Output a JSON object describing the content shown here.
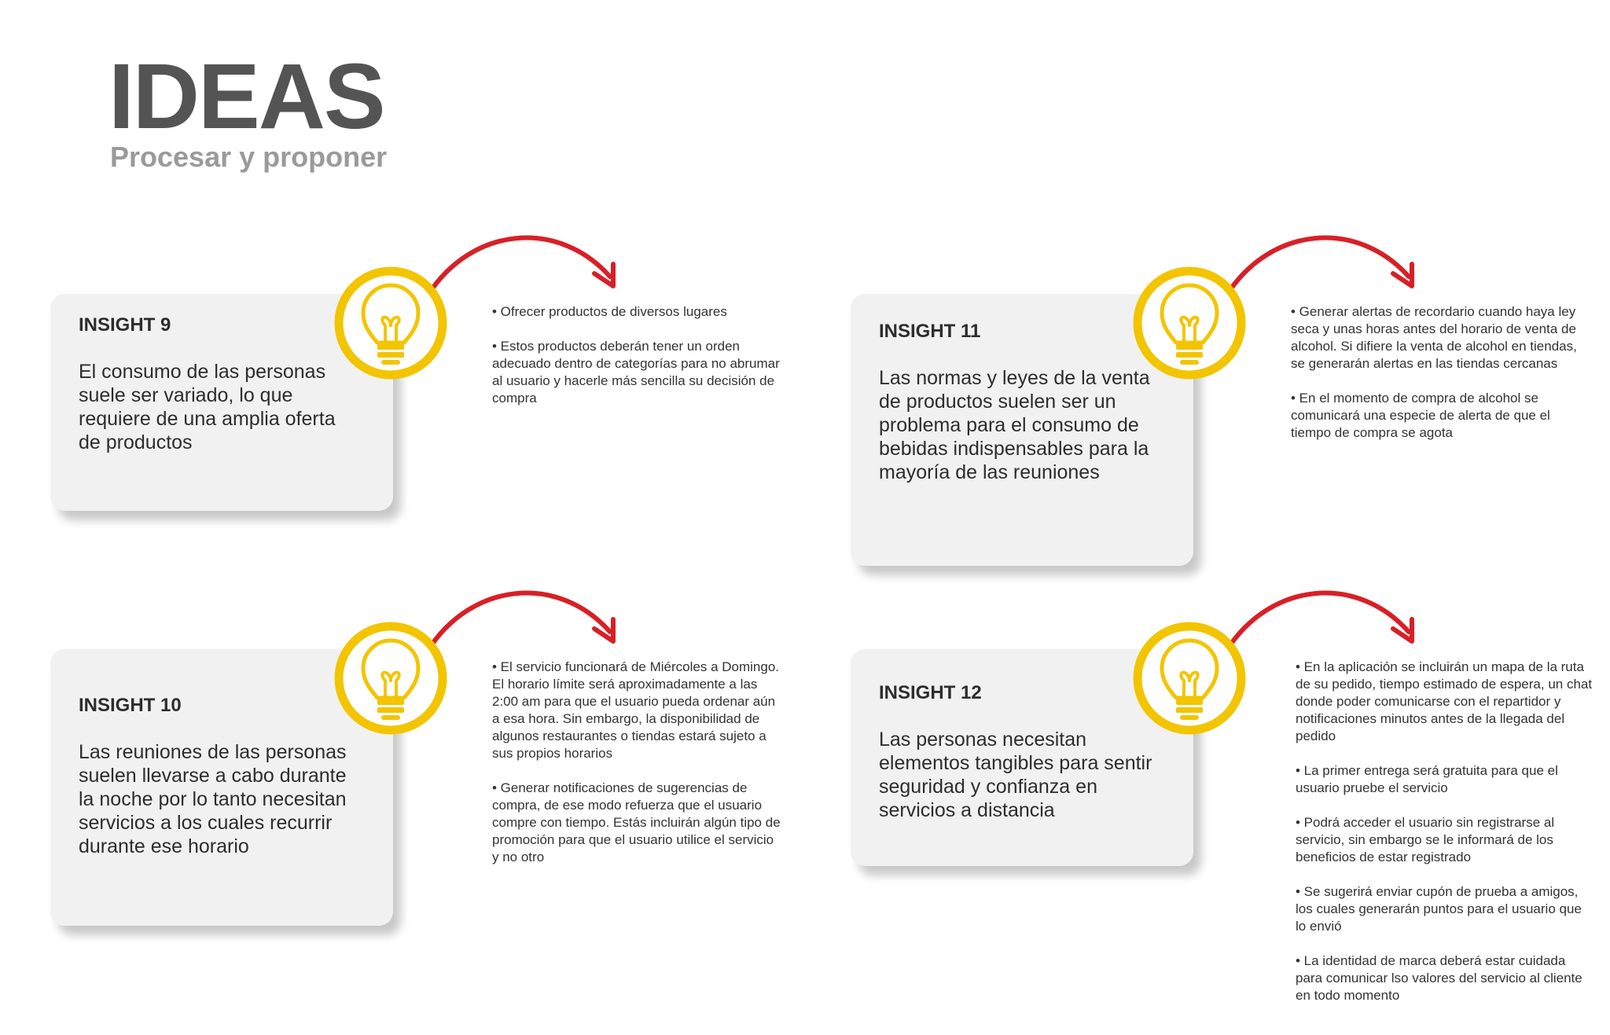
{
  "header": {
    "title": "IDEAS",
    "subtitle": "Procesar y proponer"
  },
  "colors": {
    "accent_yellow": "#f2c500",
    "arrow_red": "#d91f26",
    "card_bg": "#f1f1f1",
    "title_gray": "#545454",
    "subtitle_gray": "#9a9a9a"
  },
  "icons": {
    "insight_icon": "lightbulb-icon",
    "connector": "curved-arrow"
  },
  "insights": [
    {
      "title": "INSIGHT 9",
      "text": "El consumo de las personas suele ser variado, lo que requiere de una amplia oferta de productos",
      "ideas": [
        "• Ofrecer productos de diversos lugares",
        "• Estos productos deberán tener un orden adecuado dentro de categorías para no abrumar al usuario y hacerle más sencilla su decisión de compra"
      ]
    },
    {
      "title": "INSIGHT 10",
      "text": "Las reuniones de las personas suelen llevarse a cabo durante la noche por lo tanto necesitan servicios a los cuales recurrir durante ese horario",
      "ideas": [
        "• El servicio funcionará de Miércoles a Domingo. El horario límite será aproximadamente a las 2:00 am para que el usuario pueda ordenar aún a esa hora. Sin embargo, la disponibilidad de algunos restaurantes o tiendas estará sujeto a sus propios horarios",
        "• Generar notificaciones de sugerencias de compra, de ese modo refuerza que el usuario compre con tiempo. Estás incluirán algún tipo de promoción para que el usuario utilice el servicio y no otro"
      ]
    },
    {
      "title": "INSIGHT 11",
      "text": "Las normas y leyes de la venta de productos suelen ser un problema para el consumo de bebidas indispensables para la mayoría de las reuniones",
      "ideas": [
        "• Generar alertas de recordario cuando haya ley seca y unas horas antes del horario de venta de alcohol. Si difiere la venta de alcohol en tiendas, se generarán alertas en las tiendas cercanas",
        "• En el momento de compra de alcohol se comunicará una especie de alerta de que el tiempo de compra se agota"
      ]
    },
    {
      "title": "INSIGHT 12",
      "text": "Las personas necesitan elementos tangibles para sentir seguridad y confianza en servicios a distancia",
      "ideas": [
        "• En la aplicación se incluirán un mapa de la ruta de su pedido, tiempo estimado de espera, un chat donde poder comunicarse con el repartidor y notificaciones minutos antes de la llegada del pedido",
        "• La primer entrega será gratuita para que el usuario pruebe el servicio",
        "• Podrá acceder el usuario sin registrarse al servicio, sin embargo se le informará de los beneficios de estar registrado",
        "• Se sugerirá enviar cupón de prueba a amigos, los cuales generarán puntos para el usuario que lo envió",
        "• La identidad de marca deberá estar cuidada para comunicar lso valores del servicio al cliente en todo momento"
      ]
    }
  ]
}
